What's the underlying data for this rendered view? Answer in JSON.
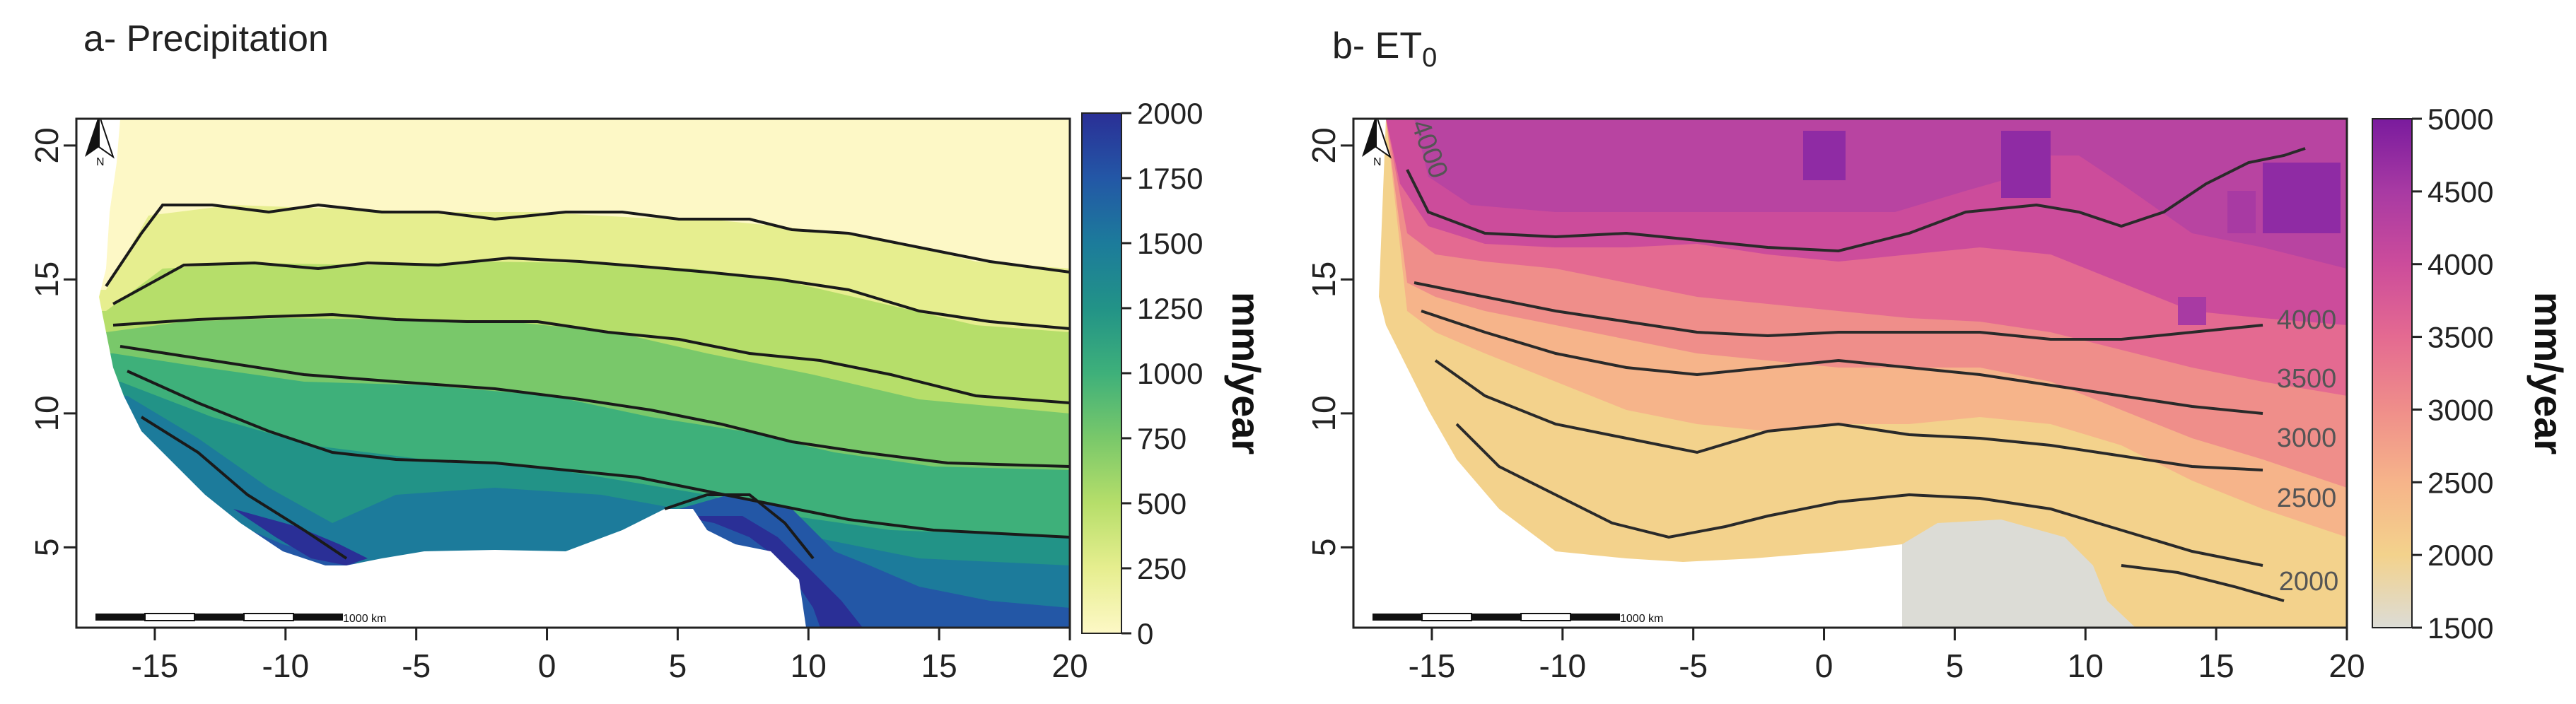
{
  "chart_data": [
    {
      "type": "heatmap",
      "title": "a- Precipitation",
      "title_sub": "",
      "colorbar_label": "mm/year",
      "x_ticks": [
        -15,
        -10,
        -5,
        0,
        5,
        10,
        15,
        20
      ],
      "y_ticks": [
        5,
        10,
        15,
        20
      ],
      "xlim": [
        -18,
        20
      ],
      "ylim": [
        2,
        21
      ],
      "colorbar_ticks": [
        0,
        250,
        500,
        750,
        1000,
        1250,
        1500,
        1750,
        2000
      ],
      "colorbar_range": [
        0,
        2000
      ],
      "colormap": [
        "#fdf8c6",
        "#e6ee8f",
        "#b6de6a",
        "#79c86a",
        "#3eb07a",
        "#229387",
        "#1c7b9b",
        "#2357a6",
        "#2a2f96"
      ],
      "contour_levels": [
        100,
        200,
        400,
        600,
        800,
        1000,
        1500,
        2000
      ],
      "scale_bar_label": "1000 km",
      "north_label": "N"
    },
    {
      "type": "heatmap",
      "title": "b- ET",
      "title_sub": "0",
      "colorbar_label": "mm/year",
      "x_ticks": [
        -15,
        -10,
        -5,
        0,
        5,
        10,
        15,
        20
      ],
      "y_ticks": [
        5,
        10,
        15,
        20
      ],
      "xlim": [
        -18,
        20
      ],
      "ylim": [
        2,
        21
      ],
      "colorbar_ticks": [
        1500,
        2000,
        2500,
        3000,
        3500,
        4000,
        4500,
        5000
      ],
      "colorbar_range": [
        1500,
        5000
      ],
      "colormap": [
        "#dcdcd6",
        "#f3d28c",
        "#f6b48a",
        "#ef8e8a",
        "#e46a91",
        "#cc4c9b",
        "#a83aa3",
        "#7a1b9e"
      ],
      "contour_levels": [
        2000,
        2500,
        3000,
        3500,
        4000
      ],
      "contour_labels": [
        "2000",
        "2500",
        "3000",
        "3500",
        "4000",
        "4000"
      ],
      "scale_bar_label": "1000 km",
      "north_label": "N"
    }
  ]
}
